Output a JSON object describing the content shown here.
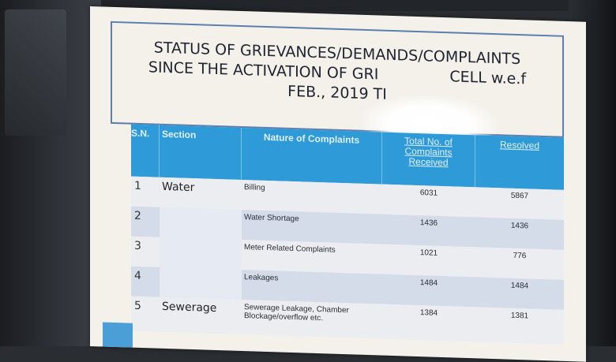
{
  "title": {
    "line1": "STATUS OF GRIEVANCES/DEMANDS/COMPLAINTS",
    "line2": "SINCE THE ACTIVATION OF GRI",
    "line2_tail": "CELL w.e.f",
    "line3": "FEB., 2019 TI"
  },
  "table": {
    "headers": {
      "sn": "S.N.",
      "section": "Section",
      "nature": "Nature of Complaints",
      "total": "Total No. of Complaints Received",
      "resolved": "Resolved"
    },
    "rows": [
      {
        "sn": "1",
        "section": "Water",
        "nature": "Billing",
        "total": "6031",
        "resolved": "5867"
      },
      {
        "sn": "2",
        "section": "",
        "nature": "Water Shortage",
        "total": "1436",
        "resolved": "1436"
      },
      {
        "sn": "3",
        "section": "",
        "nature": "Meter Related Complaints",
        "total": "1021",
        "resolved": "776"
      },
      {
        "sn": "4",
        "section": "",
        "nature": "Leakages",
        "total": "1484",
        "resolved": "1484"
      },
      {
        "sn": "5",
        "section": "Sewerage",
        "nature": "Sewerage Leakage, Chamber Blockage/overflow etc.",
        "total": "1384",
        "resolved": "1381"
      }
    ]
  },
  "colors": {
    "header_bg": "#2f9ad8",
    "title_border": "#5b7fae"
  }
}
